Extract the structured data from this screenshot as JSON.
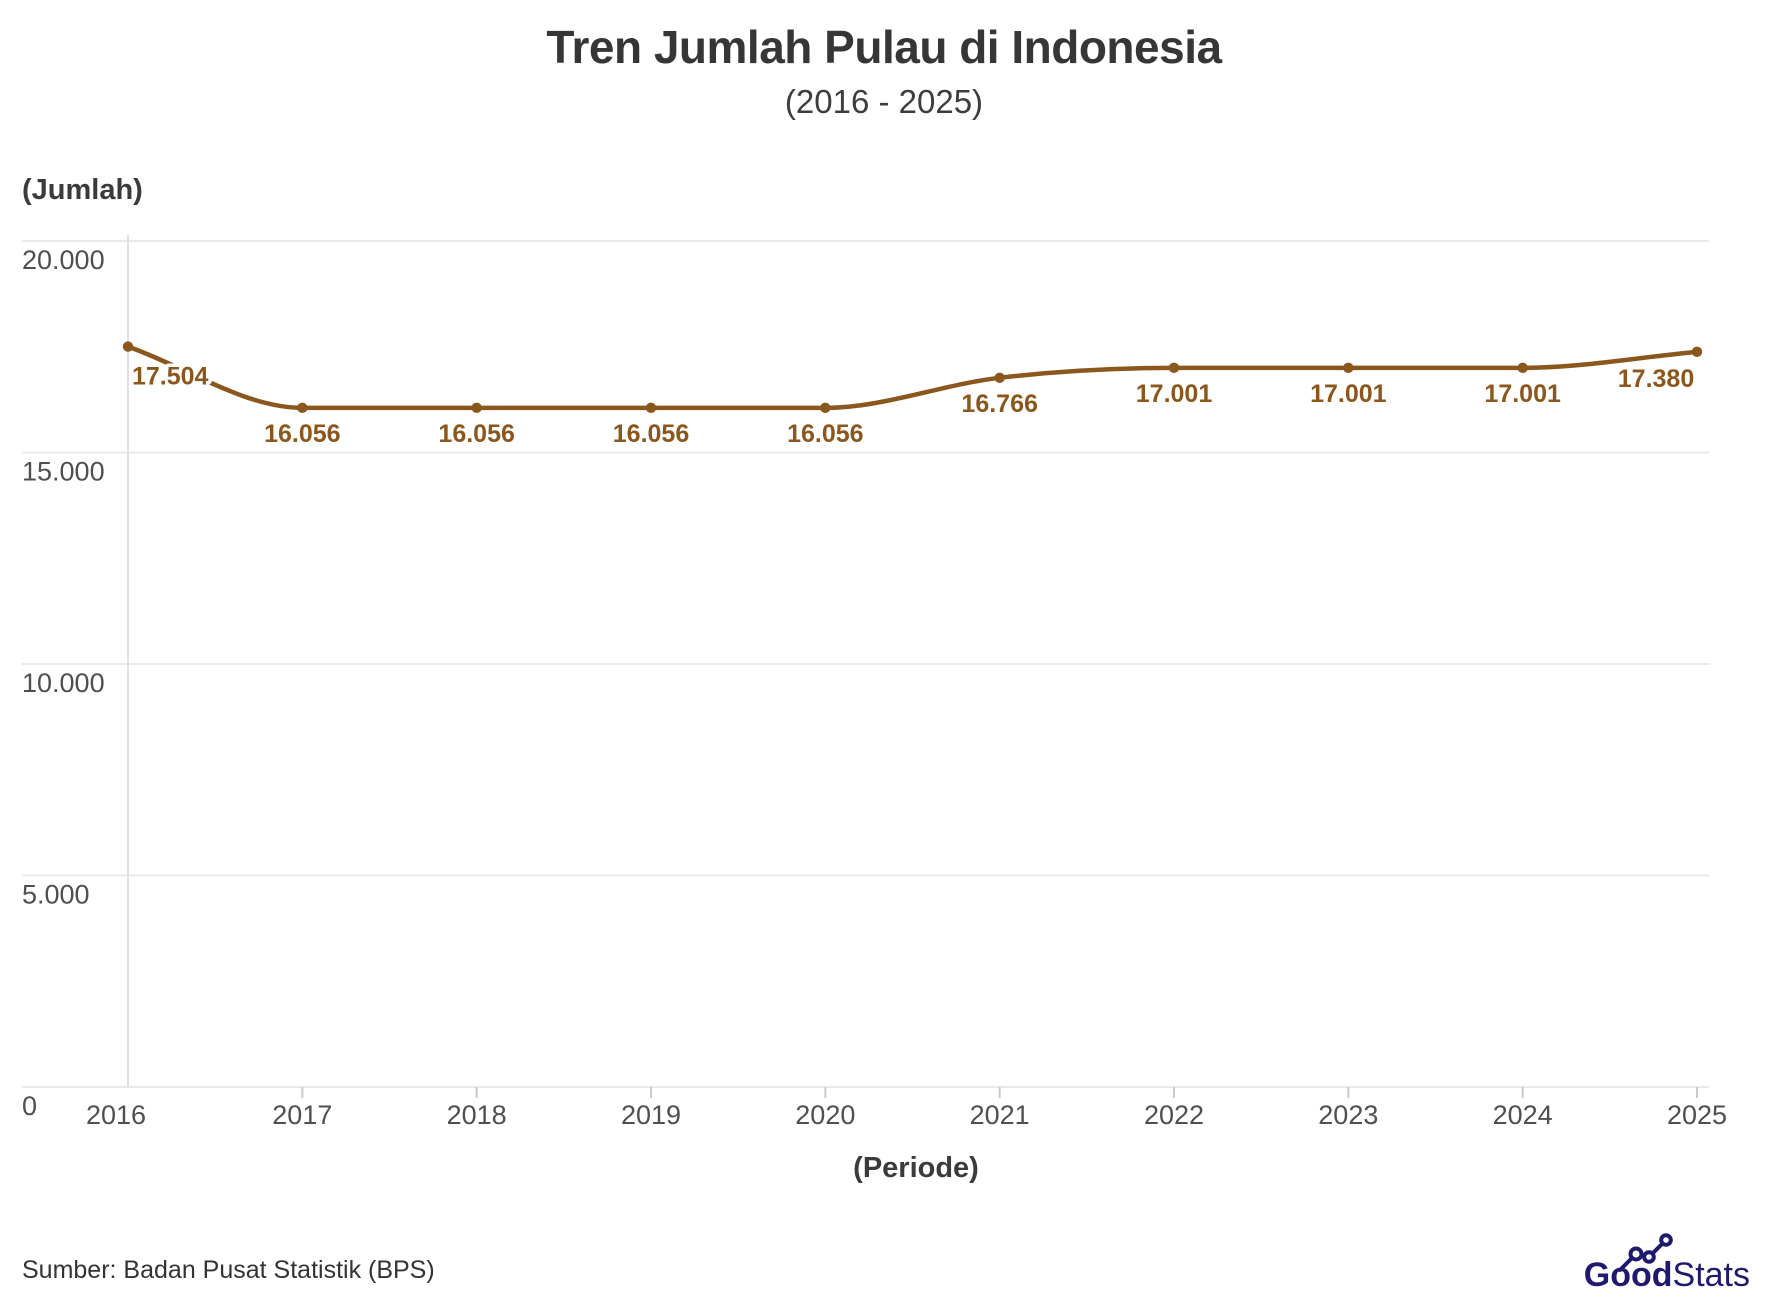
{
  "chart_data": {
    "type": "line",
    "title": "Tren Jumlah Pulau di Indonesia",
    "subtitle": "(2016 - 2025)",
    "xlabel": "(Periode)",
    "ylabel": "(Jumlah)",
    "categories": [
      "2016",
      "2017",
      "2018",
      "2019",
      "2020",
      "2021",
      "2022",
      "2023",
      "2024",
      "2025"
    ],
    "values": [
      17504,
      16056,
      16056,
      16056,
      16056,
      16766,
      17001,
      17001,
      17001,
      17380
    ],
    "point_labels": [
      "17.504",
      "16.056",
      "16.056",
      "16.056",
      "16.056",
      "16.766",
      "17.001",
      "17.001",
      "17.001",
      "17.380"
    ],
    "ylim": [
      0,
      20000
    ],
    "yticks": [
      {
        "value": 0,
        "label": "0"
      },
      {
        "value": 5000,
        "label": "5.000"
      },
      {
        "value": 10000,
        "label": "10.000"
      },
      {
        "value": 15000,
        "label": "15.000"
      },
      {
        "value": 20000,
        "label": "20.000"
      }
    ],
    "grid": "horizontal",
    "legend": "none",
    "line_color": "#8B571D",
    "point_color": "#8B571D",
    "label_color": "#8B571D",
    "tick_label_color": "#4f4f4f",
    "gridline_color": "#e9e9e9",
    "axis_line_color": "#e0e0e0",
    "tick_mark_color": "#c9c9c9"
  },
  "footer": {
    "source": "Sumber: Badan Pusat Statistik (BPS)",
    "logo": {
      "part1": "Good",
      "part2": "Stats",
      "color": "#1e1a6e"
    }
  }
}
